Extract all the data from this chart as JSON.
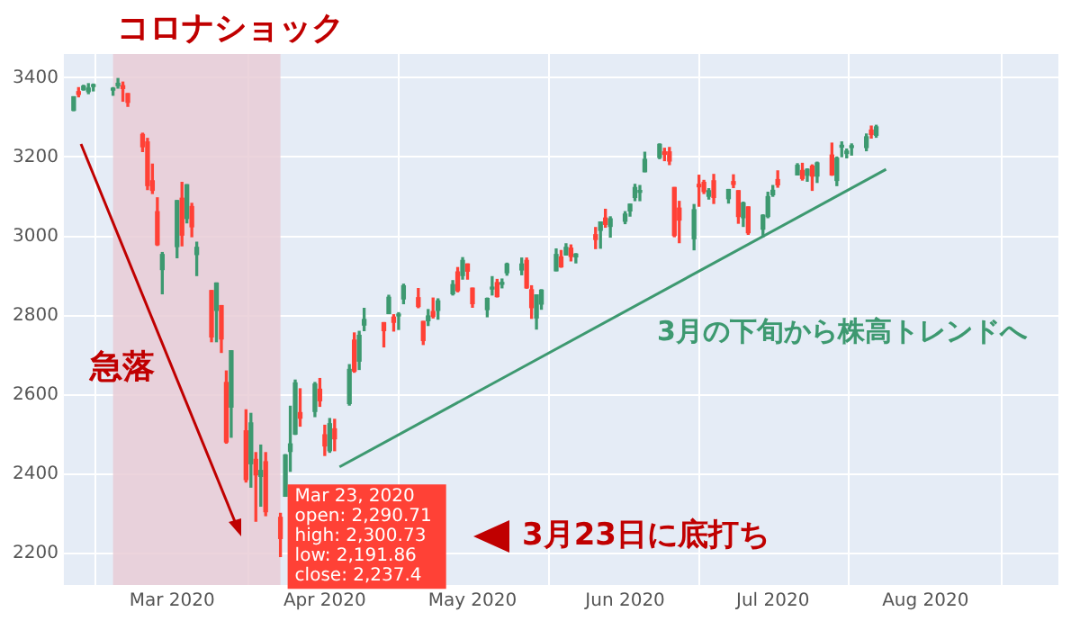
{
  "chart_data": {
    "type": "candlestick",
    "x": [
      "2020-02-10",
      "2020-02-11",
      "2020-02-12",
      "2020-02-13",
      "2020-02-14",
      "2020-02-18",
      "2020-02-19",
      "2020-02-20",
      "2020-02-21",
      "2020-02-24",
      "2020-02-25",
      "2020-02-26",
      "2020-02-27",
      "2020-02-28",
      "2020-03-02",
      "2020-03-03",
      "2020-03-04",
      "2020-03-05",
      "2020-03-06",
      "2020-03-09",
      "2020-03-10",
      "2020-03-11",
      "2020-03-12",
      "2020-03-13",
      "2020-03-16",
      "2020-03-17",
      "2020-03-18",
      "2020-03-19",
      "2020-03-20",
      "2020-03-23",
      "2020-03-24",
      "2020-03-25",
      "2020-03-26",
      "2020-03-27",
      "2020-03-30",
      "2020-03-31",
      "2020-04-01",
      "2020-04-02",
      "2020-04-03",
      "2020-04-06",
      "2020-04-07",
      "2020-04-08",
      "2020-04-09",
      "2020-04-13",
      "2020-04-14",
      "2020-04-15",
      "2020-04-16",
      "2020-04-17",
      "2020-04-20",
      "2020-04-21",
      "2020-04-22",
      "2020-04-23",
      "2020-04-24",
      "2020-04-27",
      "2020-04-28",
      "2020-04-29",
      "2020-04-30",
      "2020-05-01",
      "2020-05-04",
      "2020-05-05",
      "2020-05-06",
      "2020-05-07",
      "2020-05-08",
      "2020-05-11",
      "2020-05-12",
      "2020-05-13",
      "2020-05-14",
      "2020-05-15",
      "2020-05-18",
      "2020-05-19",
      "2020-05-20",
      "2020-05-21",
      "2020-05-22",
      "2020-05-26",
      "2020-05-27",
      "2020-05-28",
      "2020-05-29",
      "2020-06-01",
      "2020-06-02",
      "2020-06-03",
      "2020-06-04",
      "2020-06-05",
      "2020-06-08",
      "2020-06-09",
      "2020-06-10",
      "2020-06-11",
      "2020-06-12",
      "2020-06-15",
      "2020-06-16",
      "2020-06-17",
      "2020-06-18",
      "2020-06-19",
      "2020-06-22",
      "2020-06-23",
      "2020-06-24",
      "2020-06-25",
      "2020-06-26",
      "2020-06-29",
      "2020-06-30",
      "2020-07-01",
      "2020-07-02",
      "2020-07-06",
      "2020-07-07",
      "2020-07-08",
      "2020-07-09",
      "2020-07-10",
      "2020-07-13",
      "2020-07-14",
      "2020-07-15",
      "2020-07-16",
      "2020-07-17",
      "2020-07-20",
      "2020-07-21",
      "2020-07-22"
    ],
    "ohlc": [
      [
        3318,
        3352,
        3317,
        3352
      ],
      [
        3365,
        3375,
        3352,
        3358
      ],
      [
        3370,
        3381,
        3369,
        3379
      ],
      [
        3365,
        3385,
        3360,
        3374
      ],
      [
        3378,
        3384,
        3367,
        3380
      ],
      [
        3369,
        3375,
        3356,
        3370
      ],
      [
        3380,
        3398,
        3374,
        3386
      ],
      [
        3380,
        3389,
        3341,
        3373
      ],
      [
        3360,
        3360,
        3328,
        3338
      ],
      [
        3257,
        3260,
        3214,
        3226
      ],
      [
        3238,
        3247,
        3118,
        3128
      ],
      [
        3140,
        3182,
        3108,
        3116
      ],
      [
        3062,
        3097,
        2977,
        2979
      ],
      [
        2916,
        2959,
        2855,
        2954
      ],
      [
        2974,
        3090,
        2946,
        3090
      ],
      [
        3096,
        3136,
        2976,
        3003
      ],
      [
        3045,
        3130,
        3034,
        3130
      ],
      [
        3075,
        3083,
        2999,
        3024
      ],
      [
        2954,
        2985,
        2901,
        2972
      ],
      [
        2863,
        2863,
        2734,
        2746
      ],
      [
        2813,
        2882,
        2734,
        2882
      ],
      [
        2825,
        2825,
        2707,
        2741
      ],
      [
        2631,
        2660,
        2478,
        2481
      ],
      [
        2569,
        2711,
        2493,
        2711
      ],
      [
        2509,
        2562,
        2380,
        2386
      ],
      [
        2426,
        2553,
        2367,
        2529
      ],
      [
        2437,
        2454,
        2281,
        2398
      ],
      [
        2394,
        2473,
        2319,
        2409
      ],
      [
        2431,
        2454,
        2295,
        2305
      ],
      [
        2290.71,
        2300.73,
        2191.86,
        2237.4
      ],
      [
        2344,
        2449,
        2344,
        2448
      ],
      [
        2457,
        2571,
        2407,
        2476
      ],
      [
        2501,
        2637,
        2500,
        2630
      ],
      [
        2555,
        2615,
        2521,
        2541
      ],
      [
        2558,
        2631,
        2545,
        2627
      ],
      [
        2614,
        2641,
        2571,
        2585
      ],
      [
        2499,
        2523,
        2447,
        2471
      ],
      [
        2459,
        2540,
        2455,
        2527
      ],
      [
        2514,
        2538,
        2459,
        2489
      ],
      [
        2578,
        2676,
        2574,
        2664
      ],
      [
        2738,
        2756,
        2657,
        2660
      ],
      [
        2685,
        2760,
        2664,
        2750
      ],
      [
        2776,
        2818,
        2762,
        2790
      ],
      [
        2782,
        2782,
        2721,
        2762
      ],
      [
        2805,
        2851,
        2805,
        2846
      ],
      [
        2796,
        2802,
        2761,
        2783
      ],
      [
        2799,
        2807,
        2765,
        2800
      ],
      [
        2842,
        2879,
        2830,
        2875
      ],
      [
        2845,
        2868,
        2820,
        2823
      ],
      [
        2785,
        2785,
        2727,
        2737
      ],
      [
        2787,
        2815,
        2775,
        2799
      ],
      [
        2810,
        2844,
        2794,
        2798
      ],
      [
        2813,
        2842,
        2791,
        2837
      ],
      [
        2855,
        2888,
        2852,
        2878
      ],
      [
        2910,
        2921,
        2860,
        2863
      ],
      [
        2901,
        2946,
        2892,
        2939
      ],
      [
        2930,
        2930,
        2892,
        2912
      ],
      [
        2869,
        2869,
        2821,
        2830
      ],
      [
        2815,
        2844,
        2797,
        2843
      ],
      [
        2867,
        2898,
        2852,
        2868
      ],
      [
        2883,
        2891,
        2847,
        2848
      ],
      [
        2879,
        2892,
        2870,
        2881
      ],
      [
        2908,
        2932,
        2902,
        2930
      ],
      [
        2915,
        2945,
        2903,
        2930
      ],
      [
        2939,
        2945,
        2869,
        2870
      ],
      [
        2865,
        2875,
        2793,
        2820
      ],
      [
        2794,
        2852,
        2766,
        2852
      ],
      [
        2829,
        2865,
        2816,
        2864
      ],
      [
        2913,
        2968,
        2913,
        2954
      ],
      [
        2948,
        2964,
        2922,
        2923
      ],
      [
        2953,
        2981,
        2953,
        2972
      ],
      [
        2970,
        2978,
        2938,
        2949
      ],
      [
        2948,
        2956,
        2933,
        2955
      ],
      [
        3004,
        3022,
        2969,
        2992
      ],
      [
        3015,
        3036,
        2970,
        3036
      ],
      [
        3046,
        3068,
        3023,
        3030
      ],
      [
        3025,
        3049,
        2998,
        3044
      ],
      [
        3038,
        3062,
        3032,
        3056
      ],
      [
        3064,
        3081,
        3051,
        3081
      ],
      [
        3098,
        3131,
        3090,
        3123
      ],
      [
        3111,
        3128,
        3090,
        3112
      ],
      [
        3163,
        3212,
        3163,
        3194
      ],
      [
        3199,
        3233,
        3196,
        3232
      ],
      [
        3213,
        3222,
        3191,
        3207
      ],
      [
        3213,
        3224,
        3181,
        3190
      ],
      [
        3123,
        3123,
        2999,
        3002
      ],
      [
        3071,
        3088,
        2984,
        3041
      ],
      [
        2994,
        3080,
        2966,
        3067
      ],
      [
        3131,
        3154,
        3076,
        3125
      ],
      [
        3136,
        3141,
        3108,
        3113
      ],
      [
        3101,
        3120,
        3094,
        3115
      ],
      [
        3140,
        3156,
        3083,
        3098
      ],
      [
        3095,
        3118,
        3084,
        3118
      ],
      [
        3138,
        3155,
        3123,
        3131
      ],
      [
        3115,
        3115,
        3033,
        3050
      ],
      [
        3047,
        3086,
        3025,
        3084
      ],
      [
        3074,
        3074,
        3005,
        3009
      ],
      [
        3018,
        3054,
        2999,
        3053
      ],
      [
        3050,
        3111,
        3047,
        3100
      ],
      [
        3105,
        3128,
        3101,
        3116
      ],
      [
        3143,
        3165,
        3124,
        3130
      ],
      [
        3155,
        3183,
        3155,
        3179
      ],
      [
        3166,
        3184,
        3142,
        3146
      ],
      [
        3154,
        3170,
        3139,
        3169
      ],
      [
        3177,
        3180,
        3116,
        3152
      ],
      [
        3152,
        3187,
        3136,
        3185
      ],
      [
        3205,
        3235,
        3154,
        3155
      ],
      [
        3141,
        3200,
        3128,
        3197
      ],
      [
        3225,
        3238,
        3201,
        3227
      ],
      [
        3209,
        3220,
        3198,
        3215
      ],
      [
        3224,
        3233,
        3205,
        3225
      ],
      [
        3224,
        3258,
        3216,
        3251
      ],
      [
        3268,
        3278,
        3248,
        3257
      ],
      [
        3255,
        3280,
        3250,
        3276
      ]
    ],
    "colors": [
      "#3d9970",
      "#ff4136",
      "#3d9970",
      "#3d9970",
      "#3d9970",
      "#3d9970",
      "#3d9970",
      "#ff4136",
      "#ff4136",
      "#ff4136",
      "#ff4136",
      "#ff4136",
      "#ff4136",
      "#3d9970",
      "#3d9970",
      "#ff4136",
      "#3d9970",
      "#ff4136",
      "#3d9970",
      "#ff4136",
      "#3d9970",
      "#ff4136",
      "#ff4136",
      "#3d9970",
      "#ff4136",
      "#3d9970",
      "#ff4136",
      "#3d9970",
      "#ff4136",
      "#ff4136",
      "#3d9970",
      "#3d9970",
      "#3d9970",
      "#ff4136",
      "#3d9970",
      "#ff4136",
      "#ff4136",
      "#3d9970",
      "#ff4136",
      "#3d9970",
      "#ff4136",
      "#3d9970",
      "#3d9970",
      "#ff4136",
      "#3d9970",
      "#ff4136",
      "#3d9970",
      "#3d9970",
      "#ff4136",
      "#ff4136",
      "#3d9970",
      "#ff4136",
      "#3d9970",
      "#3d9970",
      "#ff4136",
      "#3d9970",
      "#ff4136",
      "#ff4136",
      "#3d9970",
      "#3d9970",
      "#ff4136",
      "#3d9970",
      "#3d9970",
      "#3d9970",
      "#ff4136",
      "#ff4136",
      "#3d9970",
      "#3d9970",
      "#3d9970",
      "#ff4136",
      "#3d9970",
      "#ff4136",
      "#3d9970",
      "#ff4136",
      "#3d9970",
      "#ff4136",
      "#3d9970",
      "#3d9970",
      "#3d9970",
      "#3d9970",
      "#3d9970",
      "#3d9970",
      "#3d9970",
      "#ff4136",
      "#ff4136",
      "#ff4136",
      "#ff4136",
      "#3d9970",
      "#ff4136",
      "#ff4136",
      "#3d9970",
      "#ff4136",
      "#3d9970",
      "#ff4136",
      "#ff4136",
      "#3d9970",
      "#ff4136",
      "#3d9970",
      "#3d9970",
      "#3d9970",
      "#ff4136",
      "#3d9970",
      "#ff4136",
      "#3d9970",
      "#ff4136",
      "#3d9970",
      "#ff4136",
      "#3d9970",
      "#3d9970",
      "#3d9970",
      "#3d9970",
      "#3d9970",
      "#ff4136",
      "#3d9970"
    ],
    "series": [
      {
        "type": "line",
        "name": "3月の下旬から株高トレンドへ",
        "color": "#3d9970",
        "x": [
          "2020-04-04",
          "2020-07-24"
        ],
        "values": [
          2418,
          3169
        ]
      }
    ],
    "bands": [
      {
        "axis": "x",
        "from": "2020-02-18",
        "to": "2020-03-23",
        "label": "コロナショック",
        "color": "#e9cdd6"
      }
    ],
    "annotations": [
      "急落",
      {
        "text": "Mar 23, 2020\nopen: 2,290.71\nhigh: 2,300.73\nlow: 2,191.86\nclose: 2,237.4",
        "x": "2020-03-23",
        "y": 2237.4
      },
      "3月23日に底打ち"
    ],
    "xlim": [
      "2020-02-08",
      "2020-08-28"
    ],
    "xticks": [
      {
        "value": "2020-03-01",
        "label": "Mar 2020"
      },
      {
        "value": "2020-04-01",
        "label": "Apr 2020"
      },
      {
        "value": "2020-05-01",
        "label": "May 2020"
      },
      {
        "value": "2020-06-01",
        "label": "Jun 2020"
      },
      {
        "value": "2020-07-01",
        "label": "Jul 2020"
      },
      {
        "value": "2020-08-01",
        "label": "Aug 2020"
      }
    ],
    "ylim": [
      2120,
      3460
    ],
    "yticks": [
      2200,
      2400,
      2600,
      2800,
      3000,
      3200,
      3400
    ],
    "grid": true
  }
}
